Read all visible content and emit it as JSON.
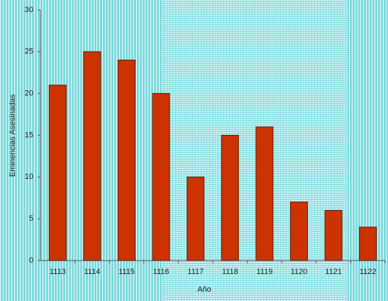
{
  "chart_data": {
    "type": "bar",
    "categories": [
      "1113",
      "1114",
      "1115",
      "1116",
      "1117",
      "1118",
      "1119",
      "1120",
      "1121",
      "1122"
    ],
    "values": [
      21,
      25,
      24,
      20,
      10,
      15,
      16,
      7,
      6,
      4
    ],
    "color": "#cc3300",
    "xlabel": "Año",
    "ylabel": "Eminencias Asesinadas",
    "ylim": [
      0,
      30
    ],
    "yticks": [
      0,
      5,
      10,
      15,
      20,
      25,
      30
    ]
  }
}
